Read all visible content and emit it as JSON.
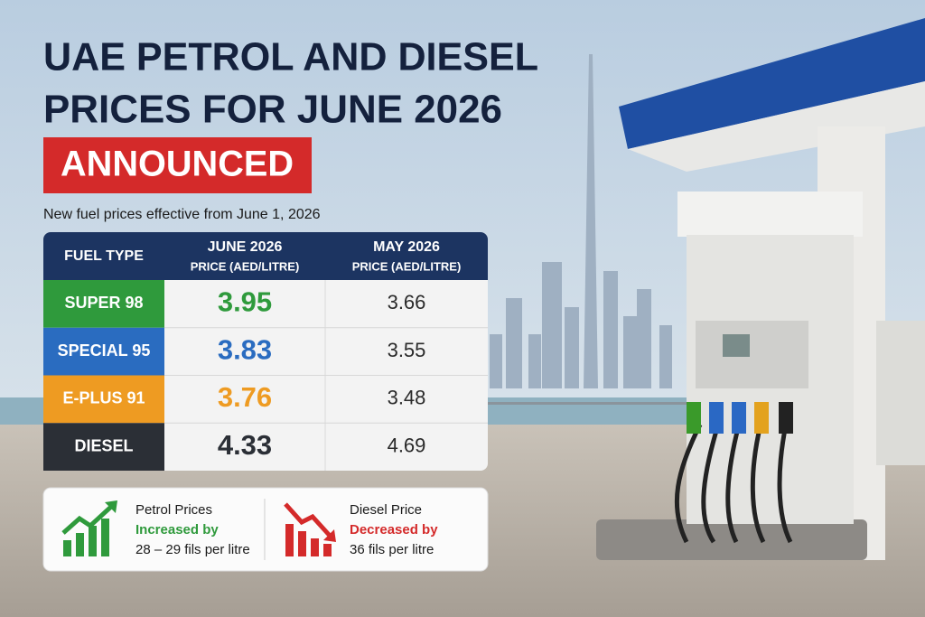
{
  "header": {
    "title_line1": "UAE PETROL AND DIESEL",
    "title_line2": "PRICES FOR JUNE 2026",
    "badge": "ANNOUNCED",
    "subtitle": "New fuel prices effective from June 1, 2026"
  },
  "table": {
    "columns": [
      [
        "FUEL TYPE"
      ],
      [
        "JUNE 2026",
        "PRICE (AED/LITRE)"
      ],
      [
        "MAY 2026",
        "PRICE (AED/LITRE)"
      ]
    ],
    "rows": [
      {
        "fuel": "SUPER 98",
        "june": 3.95,
        "may": 3.66,
        "color": "#2f9a3c"
      },
      {
        "fuel": "SPECIAL 95",
        "june": 3.83,
        "may": 3.55,
        "color": "#2a6cc0"
      },
      {
        "fuel": "E-PLUS 91",
        "june": 3.76,
        "may": 3.48,
        "color": "#ee9b22"
      },
      {
        "fuel": "DIESEL",
        "june": 4.33,
        "may": 4.69,
        "color": "#2b2f36"
      }
    ]
  },
  "notes": [
    {
      "title": "Petrol Prices",
      "change": "Increased by",
      "detail": "28 – 29 fils per litre",
      "color": "#2f9a3c"
    },
    {
      "title": "Diesel Price",
      "change": "Decreased by",
      "detail": "36 fils per litre",
      "color": "#d42a2a"
    }
  ]
}
